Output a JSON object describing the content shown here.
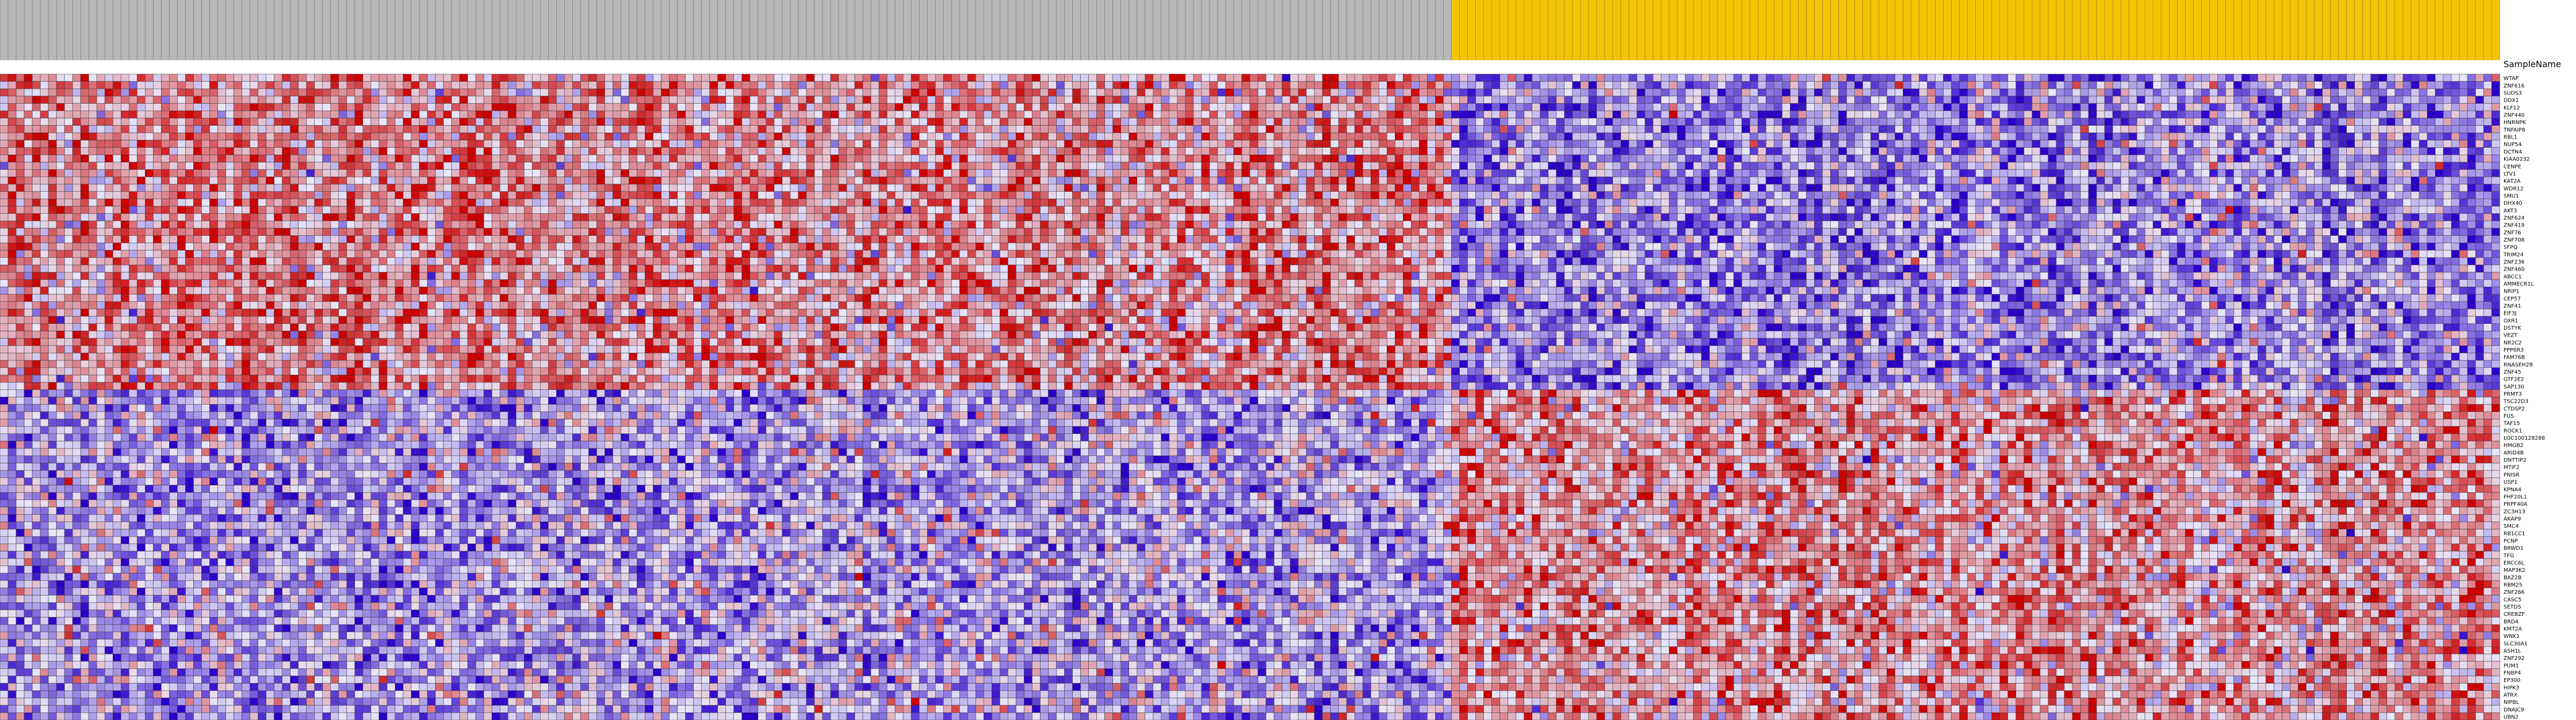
{
  "chart_data": {
    "type": "heatmap",
    "column_annotation_label": "SampleName",
    "column_groups": [
      {
        "name": "",
        "color": "#b7b7b7",
        "count": 180
      },
      {
        "name": "",
        "color": "#f5c200",
        "count": 130
      }
    ],
    "rows": [
      "WTAP",
      "ZNF616",
      "SUDS3",
      "DDX1",
      "KLF12",
      "ZNF440",
      "HNRNPK",
      "TNFAIP8",
      "RBL1",
      "NUP54",
      "DCTN4",
      "KIAA0232",
      "CENPE",
      "LTV1",
      "KAT2A",
      "WDR12",
      "SMU1",
      "DHX40",
      "AKT3",
      "ZNF624",
      "ZNF419",
      "ZNF76",
      "ZNF708",
      "SFPQ",
      "TRIM24",
      "ZNF236",
      "ZNF460",
      "ABCC1",
      "AMMECR1L",
      "NRIP1",
      "CEP57",
      "ZNF41",
      "EIF3J",
      "OXR1",
      "DSTYK",
      "VEZT",
      "NR2C2",
      "PPP6R3",
      "FAM76B",
      "RNASEH2B",
      "ZNF45",
      "GTF2E2",
      "SAP130",
      "PRMT3",
      "TSC22D3",
      "CTDSP2",
      "FUS",
      "TAF15",
      "ROCK1",
      "LOC100128288",
      "HMGB2",
      "ARID4B",
      "DNTTIP2",
      "MTIF2",
      "PNISR",
      "USP1",
      "KPNA4",
      "PHF20L1",
      "PRPF40A",
      "ZC3H13",
      "AKAP9",
      "SMC4",
      "RB1CC1",
      "PCNP",
      "BRWD1",
      "TFG",
      "ERCC6L",
      "MAP3K2",
      "BAZ2B",
      "RBM25",
      "ZNF266",
      "CASC5",
      "SETD5",
      "CREBZF",
      "BRD4",
      "KMT2A",
      "WNK1",
      "SLC30A1",
      "ASH1L",
      "ZNF292",
      "PUM1",
      "FNBP4",
      "EP300",
      "HIPK3",
      "ATRX",
      "NIPBL",
      "DNAJC9",
      "UBN2"
    ],
    "n_columns": 310,
    "value_range": [
      -2,
      2
    ],
    "color_scale": {
      "low": "#2a00c8",
      "mid": "#e8e6f8",
      "high": "#cc0000"
    },
    "row_cluster_split": 43
  }
}
